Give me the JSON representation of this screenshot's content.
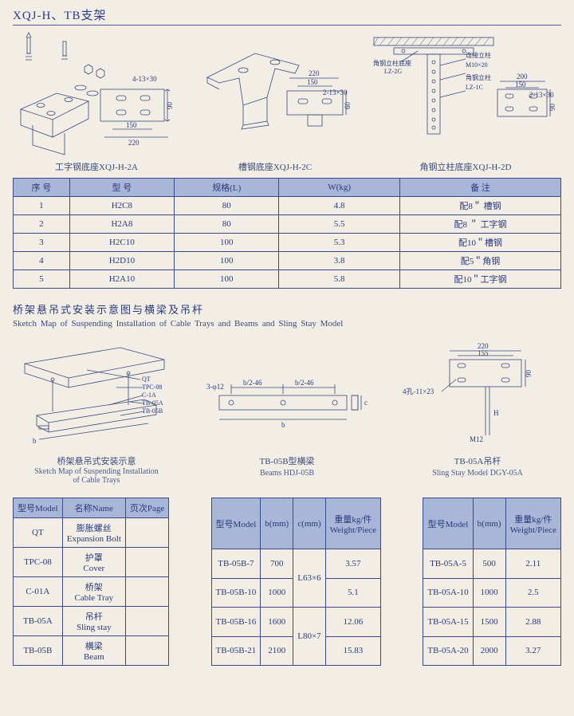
{
  "page": {
    "title": "XQJ-H、TB支架",
    "background_color": "#f2eee6",
    "ink_color": "#3a4a7a",
    "header_bg": "#a8b6d8"
  },
  "diagrams_top": [
    {
      "caption": "工字钢底座XQJ-H-2A",
      "dims": {
        "w": "220",
        "inner": "150",
        "slot": "4-13×30",
        "h": "90"
      }
    },
    {
      "caption": "槽钢底座XQJ-H-2C",
      "dims": {
        "w": "220",
        "inner": "150",
        "slot": "2-13×30",
        "h": "60"
      }
    },
    {
      "caption": "角钢立柱底座XQJ-H-2D",
      "labels": {
        "lz2g": "角钢立柱底座",
        "lz2g_code": "LZ-2G",
        "post": "连接立柱",
        "bolt": "M10×20",
        "lz1c": "角钢立柱",
        "lz1c_code": "LZ-1C"
      },
      "dims": {
        "w": "200",
        "inner": "150",
        "slot": "2-13×30",
        "h": "90"
      }
    }
  ],
  "table1": {
    "columns": [
      "序 号",
      "型 号",
      "规格(L)",
      "W(kg)",
      "备 注"
    ],
    "rows": [
      [
        "1",
        "H2C8",
        "80",
        "4.8",
        "配8＂ 槽钢"
      ],
      [
        "2",
        "H2A8",
        "80",
        "5.5",
        "配8 ＂ 工字钢"
      ],
      [
        "3",
        "H2C10",
        "100",
        "5.3",
        "配10＂槽钢"
      ],
      [
        "4",
        "H2D10",
        "100",
        "3.8",
        "配5＂角钢"
      ],
      [
        "5",
        "H2A10",
        "100",
        "5.8",
        "配10＂工字钢"
      ]
    ],
    "col_widths": [
      "70",
      "130",
      "130",
      "150",
      "200"
    ]
  },
  "section2": {
    "title_cn": "桥架悬吊式安装示意图与横梁及吊杆",
    "title_en": "Sketch Map of Suspending Installation of Cable Trays and Beams and Sling Stay Model"
  },
  "diagrams_mid": [
    {
      "caption_cn": "桥架悬吊式安装示意",
      "caption_en": "Sketch Map of Suspending Installation of Cable Trays",
      "labels": [
        "QT",
        "TPC-08",
        "C-1A",
        "TB-05A",
        "TB-05B"
      ],
      "dim": "b"
    },
    {
      "caption_cn": "TB-05B型横梁",
      "caption_en": "Beams HDJ-05B",
      "dims": {
        "holes": "3-φ12",
        "half1": "b/2-46",
        "half2": "b/2-46",
        "b": "b",
        "c": "c"
      }
    },
    {
      "caption_cn": "TB-05A吊杆",
      "caption_en": "Sling Stay Model DGY-05A",
      "dims": {
        "w": "220",
        "inner": "155",
        "h": "90",
        "slot": "4孔-11×23",
        "bolt": "M12",
        "H": "H"
      }
    }
  ],
  "table2": {
    "columns": [
      "型号Model",
      "名称Name",
      "页次Page"
    ],
    "rows": [
      [
        "QT",
        "膨胀螺丝\nExpansion Bolt",
        ""
      ],
      [
        "TPC-08",
        "护罩\nCover",
        ""
      ],
      [
        "C-01A",
        "桥架\nCable Tray",
        ""
      ],
      [
        "TB-05A",
        "吊杆\nSling stay",
        ""
      ],
      [
        "TB-05B",
        "横梁\nBeam",
        ""
      ]
    ]
  },
  "table3": {
    "columns": [
      "型号Model",
      "b(mm)",
      "c(mm)",
      "重量kg/件\nWeight/Piece"
    ],
    "rows": [
      [
        "TB-05B-7",
        "700",
        "",
        "3.57"
      ],
      [
        "TB-05B-10",
        "1000",
        "",
        "5.1"
      ],
      [
        "TB-05B-16",
        "1600",
        "",
        "12.06"
      ],
      [
        "TB-05B-21",
        "2100",
        "",
        "15.83"
      ]
    ],
    "c_spans": [
      {
        "start": 0,
        "rows": 2,
        "text": "L63×6"
      },
      {
        "start": 2,
        "rows": 2,
        "text": "L80×7"
      }
    ]
  },
  "table4": {
    "columns": [
      "型号Model",
      "b(mm)",
      "重量kg/件\nWeight/Piece"
    ],
    "rows": [
      [
        "TB-05A-5",
        "500",
        "2.11"
      ],
      [
        "TB-05A-10",
        "1000",
        "2.5"
      ],
      [
        "TB-05A-15",
        "1500",
        "2.88"
      ],
      [
        "TB-05A-20",
        "2000",
        "3.27"
      ]
    ]
  }
}
